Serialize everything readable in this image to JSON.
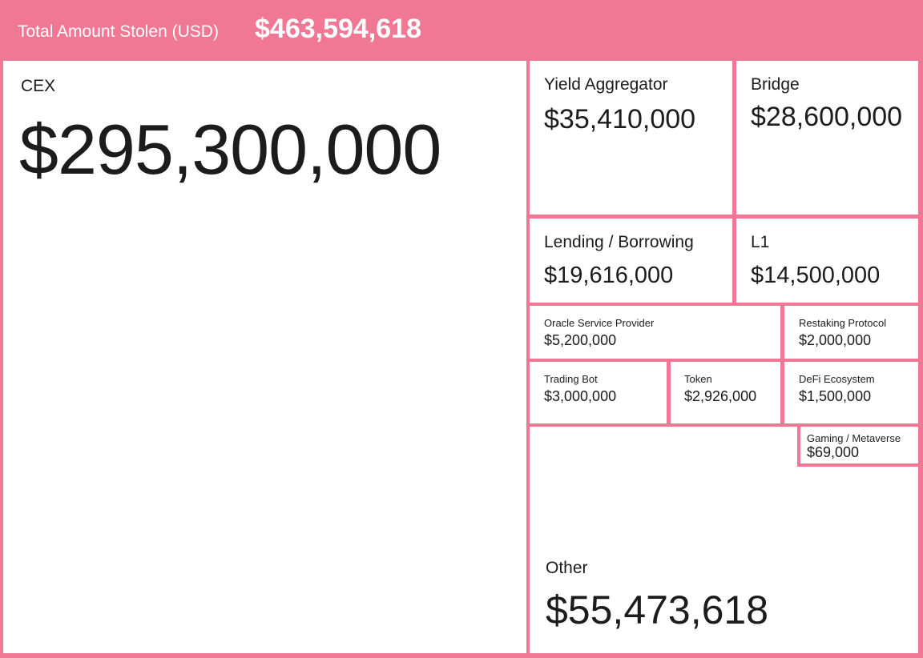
{
  "header": {
    "label": "Total Amount Stolen (USD)",
    "value": "$463,594,618"
  },
  "colors": {
    "accent": "#f07894",
    "tile_bg": "#ffffff",
    "text": "#1c1c1c"
  },
  "tiles": [
    {
      "label": "CEX",
      "value": "$295,300,000"
    },
    {
      "label": "Yield Aggregator",
      "value": "$35,410,000"
    },
    {
      "label": "Bridge",
      "value": "$28,600,000"
    },
    {
      "label": "Lending / Borrowing",
      "value": "$19,616,000"
    },
    {
      "label": "L1",
      "value": "$14,500,000"
    },
    {
      "label": "Oracle Service Provider",
      "value": "$5,200,000"
    },
    {
      "label": "Restaking Protocol",
      "value": "$2,000,000"
    },
    {
      "label": "Trading Bot",
      "value": "$3,000,000"
    },
    {
      "label": "Token",
      "value": "$2,926,000"
    },
    {
      "label": "DeFi Ecosystem",
      "value": "$1,500,000"
    },
    {
      "label": "Gaming / Metaverse",
      "value": "$69,000"
    },
    {
      "label": "Other",
      "value": "$55,473,618"
    }
  ],
  "chart_data": {
    "type": "treemap",
    "title": "Total Amount Stolen (USD)",
    "total": 463594618,
    "categories": [
      "CEX",
      "Yield Aggregator",
      "Bridge",
      "Lending / Borrowing",
      "L1",
      "Oracle Service Provider",
      "Restaking Protocol",
      "Trading Bot",
      "Token",
      "DeFi Ecosystem",
      "Gaming / Metaverse",
      "Other"
    ],
    "values": [
      295300000,
      35410000,
      28600000,
      19616000,
      14500000,
      5200000,
      2000000,
      3000000,
      2926000,
      1500000,
      69000,
      55473618
    ]
  }
}
